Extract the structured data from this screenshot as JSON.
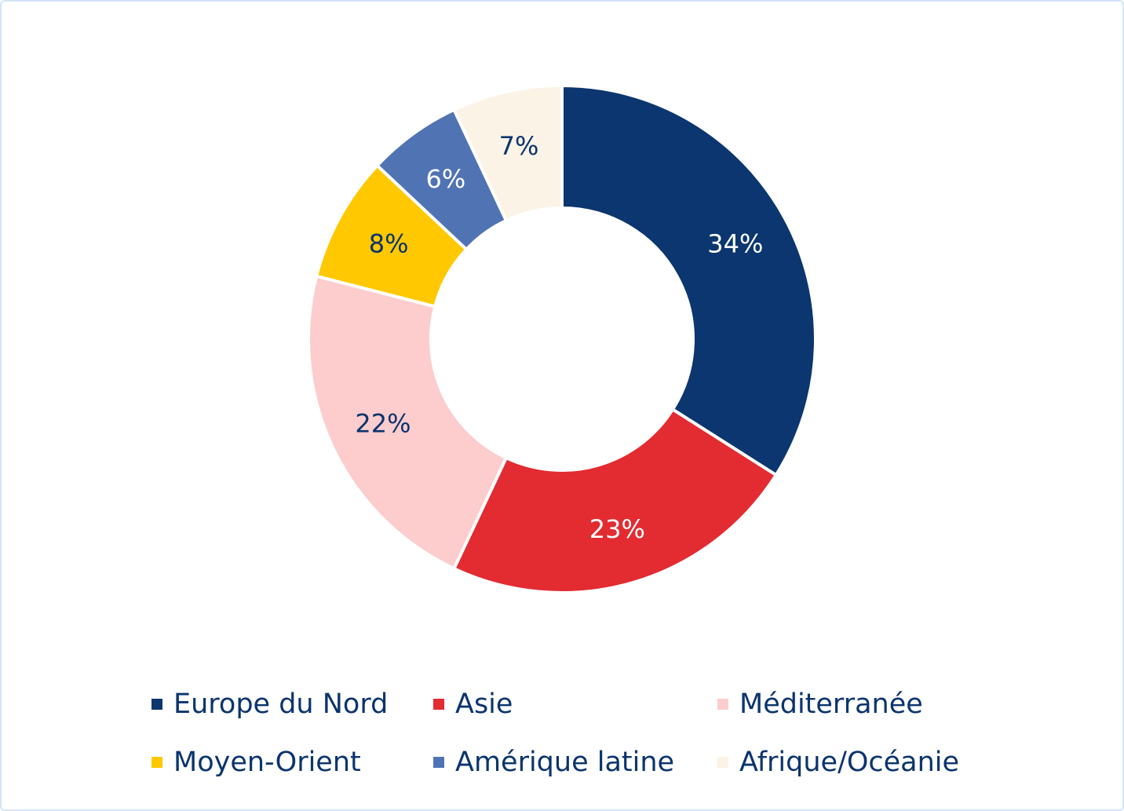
{
  "chart_data": {
    "type": "pie",
    "donut": true,
    "legend_position": "bottom",
    "slices": [
      {
        "name": "Europe du Nord",
        "value": 34,
        "label": "34%",
        "color": "#0b366f",
        "label_color": "#ffffff"
      },
      {
        "name": "Asie",
        "value": 23,
        "label": "23%",
        "color": "#e32b32",
        "label_color": "#ffffff"
      },
      {
        "name": "Méditerranée",
        "value": 22,
        "label": "22%",
        "color": "#fdcccd",
        "label_color": "#0b346e"
      },
      {
        "name": "Moyen-Orient",
        "value": 8,
        "label": "8%",
        "color": "#ffc800",
        "label_color": "#0b346e"
      },
      {
        "name": "Amérique latine",
        "value": 6,
        "label": "6%",
        "color": "#5073b3",
        "label_color": "#ffffff"
      },
      {
        "name": "Afrique/Océanie",
        "value": 7,
        "label": "7%",
        "color": "#fbf3e5",
        "label_color": "#0b346e"
      }
    ]
  }
}
